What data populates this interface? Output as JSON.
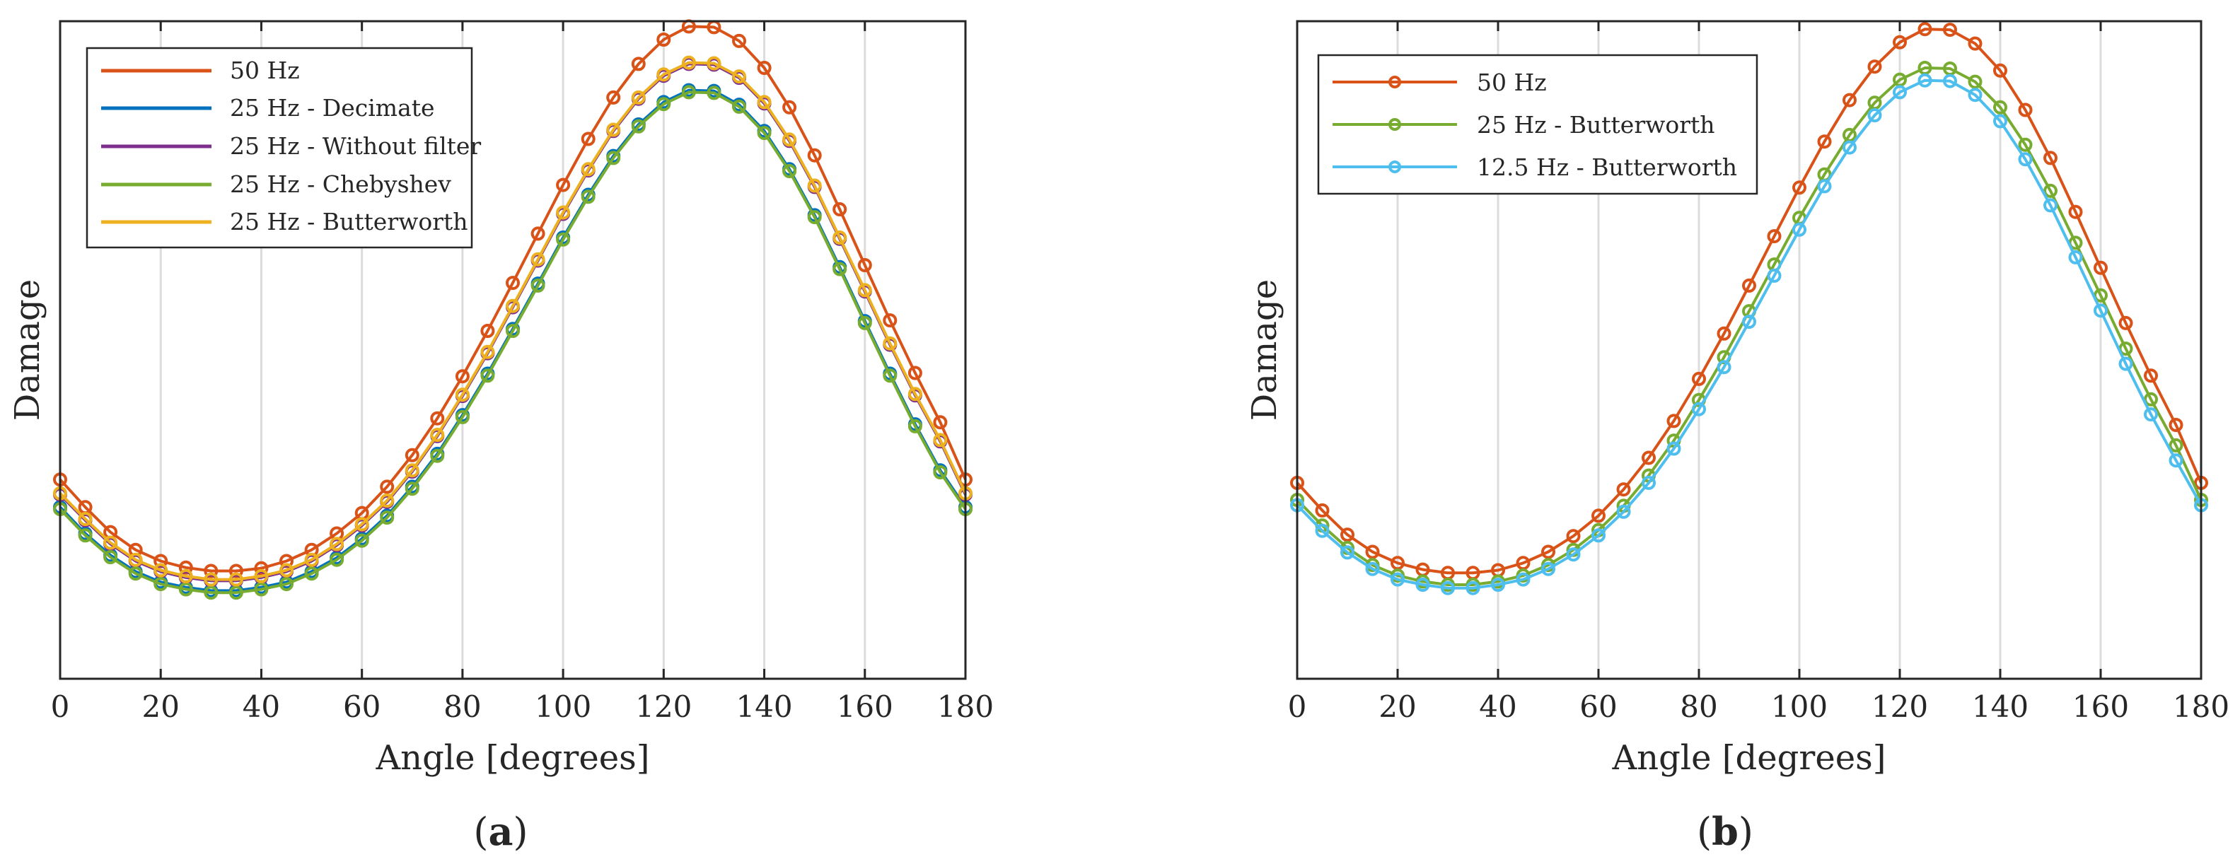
{
  "figure": {
    "panels": [
      {
        "caption": {
          "open": "(",
          "letter": "a",
          "close": ")"
        },
        "legend": [
          {
            "label": "50 Hz",
            "color": "#D95319"
          },
          {
            "label": "25 Hz - Decimate",
            "color": "#0072BD"
          },
          {
            "label": "25 Hz - Without filter",
            "color": "#7E2F8E"
          },
          {
            "label": "25 Hz - Chebyshev",
            "color": "#77AC30"
          },
          {
            "label": "25 Hz - Butterworth",
            "color": "#EDB120"
          }
        ]
      },
      {
        "caption": {
          "open": "(",
          "letter": "b",
          "close": ")"
        },
        "legend": [
          {
            "label": "50 Hz",
            "color": "#D95319"
          },
          {
            "label": "25 Hz - Butterworth",
            "color": "#77AC30"
          },
          {
            "label": "12.5 Hz - Butterworth",
            "color": "#4DBEEE"
          }
        ]
      }
    ]
  },
  "chart_data": [
    {
      "type": "line",
      "title": "",
      "xlabel": "Angle [degrees]",
      "ylabel": "Damage",
      "xlim": [
        0,
        180
      ],
      "ylim": [
        0,
        1
      ],
      "xticks": [
        0,
        20,
        40,
        60,
        80,
        100,
        120,
        140,
        160,
        180
      ],
      "yticks": [],
      "grid": "vertical",
      "legend_position": "top-left",
      "marker": "circle",
      "x": [
        0,
        5,
        10,
        15,
        20,
        25,
        30,
        35,
        40,
        45,
        50,
        55,
        60,
        65,
        70,
        75,
        80,
        85,
        90,
        95,
        100,
        105,
        110,
        115,
        120,
        125,
        130,
        135,
        140,
        145,
        150,
        155,
        160,
        165,
        170,
        175,
        180
      ],
      "series": [
        {
          "name": "50 Hz",
          "color": "#D95319",
          "values": [
            0.303,
            0.261,
            0.223,
            0.196,
            0.179,
            0.169,
            0.164,
            0.164,
            0.168,
            0.179,
            0.196,
            0.221,
            0.252,
            0.292,
            0.34,
            0.396,
            0.46,
            0.529,
            0.602,
            0.677,
            0.751,
            0.821,
            0.884,
            0.935,
            0.972,
            0.992,
            0.991,
            0.97,
            0.929,
            0.869,
            0.796,
            0.714,
            0.629,
            0.545,
            0.465,
            0.39,
            0.303
          ]
        },
        {
          "name": "25 Hz - Decimate",
          "color": "#0072BD",
          "values": [
            0.261,
            0.221,
            0.188,
            0.163,
            0.147,
            0.139,
            0.134,
            0.134,
            0.139,
            0.147,
            0.163,
            0.184,
            0.213,
            0.248,
            0.292,
            0.342,
            0.401,
            0.464,
            0.532,
            0.601,
            0.671,
            0.736,
            0.795,
            0.843,
            0.877,
            0.895,
            0.894,
            0.873,
            0.833,
            0.775,
            0.705,
            0.626,
            0.544,
            0.464,
            0.387,
            0.317,
            0.261
          ]
        },
        {
          "name": "25 Hz - Without filter",
          "color": "#7E2F8E",
          "values": [
            0.28,
            0.241,
            0.205,
            0.179,
            0.163,
            0.154,
            0.149,
            0.149,
            0.154,
            0.163,
            0.179,
            0.203,
            0.233,
            0.269,
            0.315,
            0.369,
            0.43,
            0.495,
            0.565,
            0.636,
            0.707,
            0.773,
            0.833,
            0.882,
            0.917,
            0.935,
            0.934,
            0.914,
            0.875,
            0.818,
            0.748,
            0.669,
            0.589,
            0.508,
            0.431,
            0.361,
            0.28
          ]
        },
        {
          "name": "25 Hz - Chebyshev",
          "color": "#77AC30",
          "values": [
            0.258,
            0.218,
            0.185,
            0.16,
            0.144,
            0.136,
            0.131,
            0.131,
            0.136,
            0.144,
            0.16,
            0.181,
            0.21,
            0.245,
            0.289,
            0.339,
            0.398,
            0.461,
            0.529,
            0.598,
            0.668,
            0.733,
            0.792,
            0.84,
            0.874,
            0.892,
            0.891,
            0.87,
            0.83,
            0.772,
            0.702,
            0.623,
            0.541,
            0.461,
            0.384,
            0.314,
            0.258
          ]
        },
        {
          "name": "25 Hz - Butterworth",
          "color": "#EDB120",
          "values": [
            0.282,
            0.243,
            0.207,
            0.181,
            0.165,
            0.156,
            0.151,
            0.151,
            0.156,
            0.165,
            0.181,
            0.205,
            0.235,
            0.271,
            0.317,
            0.371,
            0.432,
            0.497,
            0.567,
            0.638,
            0.709,
            0.775,
            0.835,
            0.884,
            0.919,
            0.937,
            0.936,
            0.916,
            0.877,
            0.82,
            0.75,
            0.671,
            0.591,
            0.51,
            0.433,
            0.363,
            0.282
          ]
        }
      ]
    },
    {
      "type": "line",
      "title": "",
      "xlabel": "Angle [degrees]",
      "ylabel": "Damage",
      "xlim": [
        0,
        180
      ],
      "ylim": [
        0,
        1
      ],
      "xticks": [
        0,
        20,
        40,
        60,
        80,
        100,
        120,
        140,
        160,
        180
      ],
      "yticks": [],
      "grid": "vertical",
      "legend_position": "top-left",
      "marker": "circle",
      "x": [
        0,
        5,
        10,
        15,
        20,
        25,
        30,
        35,
        40,
        45,
        50,
        55,
        60,
        65,
        70,
        75,
        80,
        85,
        90,
        95,
        100,
        105,
        110,
        115,
        120,
        125,
        130,
        135,
        140,
        145,
        150,
        155,
        160,
        165,
        170,
        175,
        180
      ],
      "series": [
        {
          "name": "50 Hz",
          "color": "#D95319",
          "values": [
            0.298,
            0.256,
            0.219,
            0.193,
            0.176,
            0.166,
            0.161,
            0.161,
            0.165,
            0.176,
            0.193,
            0.217,
            0.248,
            0.288,
            0.336,
            0.392,
            0.456,
            0.525,
            0.598,
            0.673,
            0.747,
            0.817,
            0.88,
            0.931,
            0.968,
            0.988,
            0.987,
            0.966,
            0.925,
            0.865,
            0.792,
            0.71,
            0.625,
            0.541,
            0.461,
            0.386,
            0.298
          ]
        },
        {
          "name": "25 Hz - Butterworth",
          "color": "#77AC30",
          "values": [
            0.272,
            0.233,
            0.199,
            0.173,
            0.157,
            0.148,
            0.143,
            0.143,
            0.148,
            0.157,
            0.173,
            0.196,
            0.226,
            0.263,
            0.309,
            0.362,
            0.424,
            0.489,
            0.559,
            0.63,
            0.701,
            0.767,
            0.827,
            0.876,
            0.911,
            0.929,
            0.928,
            0.908,
            0.869,
            0.812,
            0.742,
            0.663,
            0.583,
            0.502,
            0.425,
            0.355,
            0.272
          ]
        },
        {
          "name": "12.5 Hz - Butterworth",
          "color": "#4DBEEE",
          "values": [
            0.264,
            0.225,
            0.192,
            0.167,
            0.151,
            0.143,
            0.138,
            0.138,
            0.143,
            0.151,
            0.167,
            0.189,
            0.218,
            0.254,
            0.298,
            0.35,
            0.41,
            0.474,
            0.543,
            0.613,
            0.683,
            0.749,
            0.808,
            0.857,
            0.892,
            0.91,
            0.909,
            0.888,
            0.848,
            0.79,
            0.72,
            0.641,
            0.56,
            0.479,
            0.402,
            0.332,
            0.264
          ]
        }
      ]
    }
  ]
}
